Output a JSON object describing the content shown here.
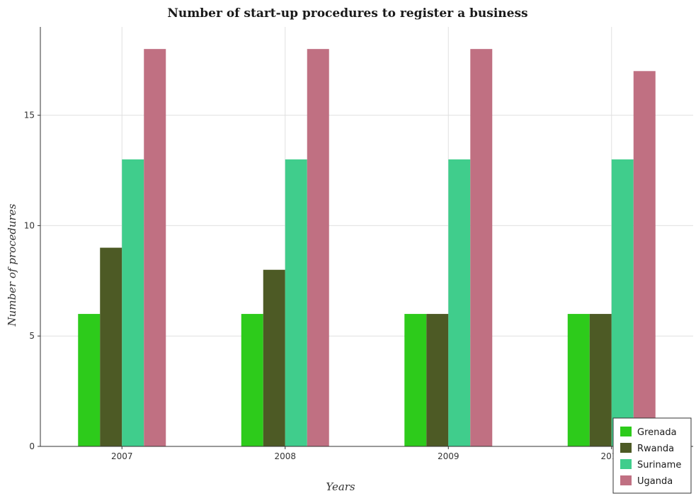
{
  "colors": {
    "Grenada": "#2dcb1b",
    "Rwanda": "#4d5a25",
    "Suriname": "#40cd8c",
    "Uganda": "#c07082",
    "grid": "#e0e0e0",
    "axis": "#333333"
  },
  "chart_data": {
    "type": "bar",
    "title": "Number of start-up procedures to register a business",
    "xlabel": "Years",
    "ylabel": "Number of procedures",
    "categories": [
      "2007",
      "2008",
      "2009",
      "2010"
    ],
    "series": [
      {
        "name": "Grenada",
        "values": [
          6,
          6,
          6,
          6
        ]
      },
      {
        "name": "Rwanda",
        "values": [
          9,
          8,
          6,
          6
        ]
      },
      {
        "name": "Suriname",
        "values": [
          13,
          13,
          13,
          13
        ]
      },
      {
        "name": "Uganda",
        "values": [
          18,
          18,
          18,
          17
        ]
      }
    ],
    "ylim": [
      0,
      19
    ],
    "yticks": [
      0,
      5,
      10,
      15
    ],
    "grid": true,
    "legend_position": "bottom-right"
  }
}
